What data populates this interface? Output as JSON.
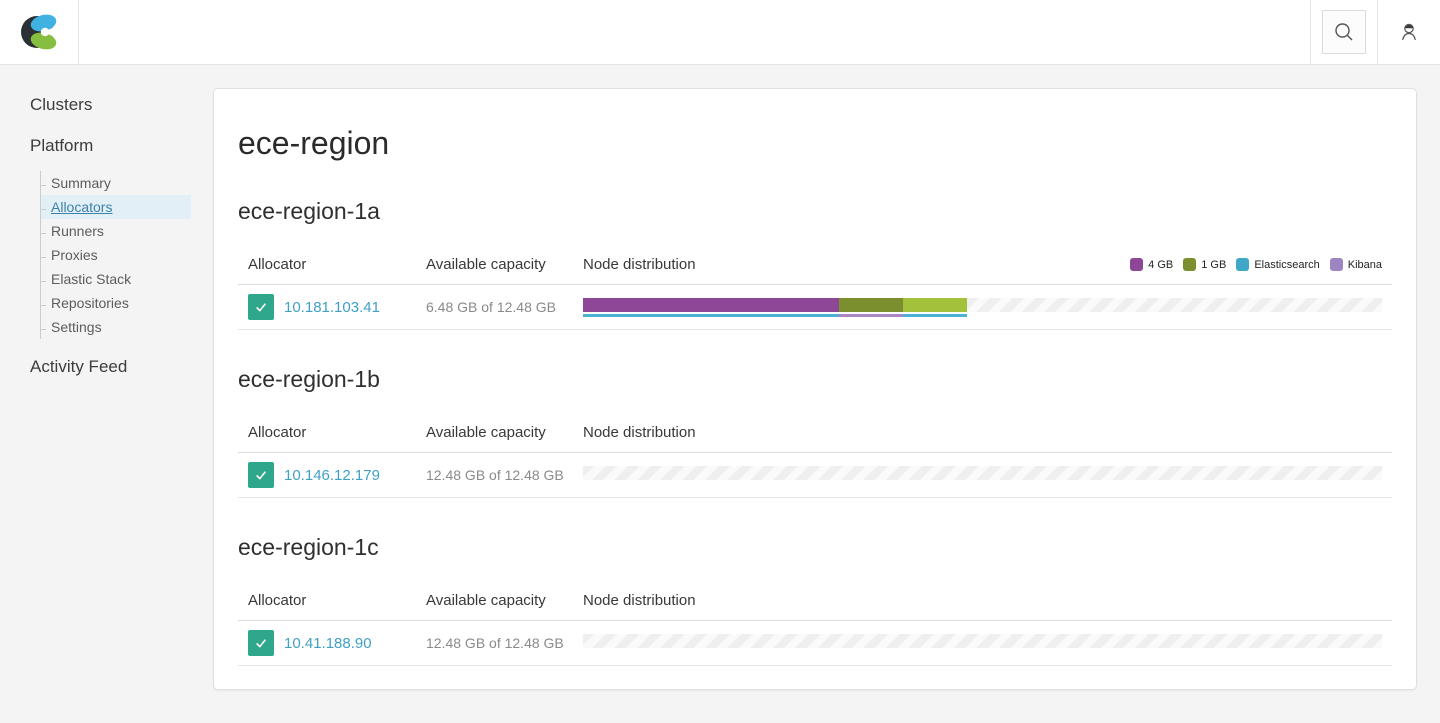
{
  "header": {
    "logo": "elastic-cloud-enterprise-logo",
    "search_icon": "search",
    "user_icon": "user-account"
  },
  "sidebar": {
    "items": [
      {
        "label": "Clusters"
      },
      {
        "label": "Platform"
      },
      {
        "label": "Activity Feed"
      }
    ],
    "platform_children": [
      {
        "label": "Summary",
        "active": false
      },
      {
        "label": "Allocators",
        "active": true
      },
      {
        "label": "Runners",
        "active": false
      },
      {
        "label": "Proxies",
        "active": false
      },
      {
        "label": "Elastic Stack",
        "active": false
      },
      {
        "label": "Repositories",
        "active": false
      },
      {
        "label": "Settings",
        "active": false
      }
    ]
  },
  "main": {
    "title": "ece-region",
    "columns": {
      "allocator": "Allocator",
      "capacity": "Available capacity",
      "node": "Node distribution"
    },
    "legend": [
      {
        "label": "4 GB",
        "color": "#8d4796"
      },
      {
        "label": "1 GB",
        "color": "#7b8f2f"
      },
      {
        "label": "Elasticsearch",
        "color": "#3fa8c9"
      },
      {
        "label": "Kibana",
        "color": "#9c85c0"
      }
    ],
    "sections": [
      {
        "heading": "ece-region-1a",
        "rows": [
          {
            "ip": "10.181.103.41",
            "capacity": "6.48 GB of 12.48 GB",
            "status": "healthy",
            "segments": [
              {
                "pct": 32.05,
                "size": "4 GB",
                "size_color": "#8d4796",
                "kind": "Elasticsearch",
                "kind_color": "#4ab1d3"
              },
              {
                "pct": 8.01,
                "size": "1 GB",
                "size_color": "#7b8f2f",
                "kind": "Kibana",
                "kind_color": "#ab87c2"
              },
              {
                "pct": 8.01,
                "size": "1 GB",
                "size_color": "#a3c13a",
                "kind": "Elasticsearch",
                "kind_color": "#4ab1d3"
              }
            ]
          }
        ]
      },
      {
        "heading": "ece-region-1b",
        "rows": [
          {
            "ip": "10.146.12.179",
            "capacity": "12.48 GB of 12.48 GB",
            "status": "healthy",
            "segments": []
          }
        ]
      },
      {
        "heading": "ece-region-1c",
        "rows": [
          {
            "ip": "10.41.188.90",
            "capacity": "12.48 GB of 12.48 GB",
            "status": "healthy",
            "segments": []
          }
        ]
      }
    ]
  },
  "colors": {
    "healthy_check": "#2ea78d",
    "link": "#3fa0c6",
    "active_nav_bg": "#e2eff7"
  }
}
